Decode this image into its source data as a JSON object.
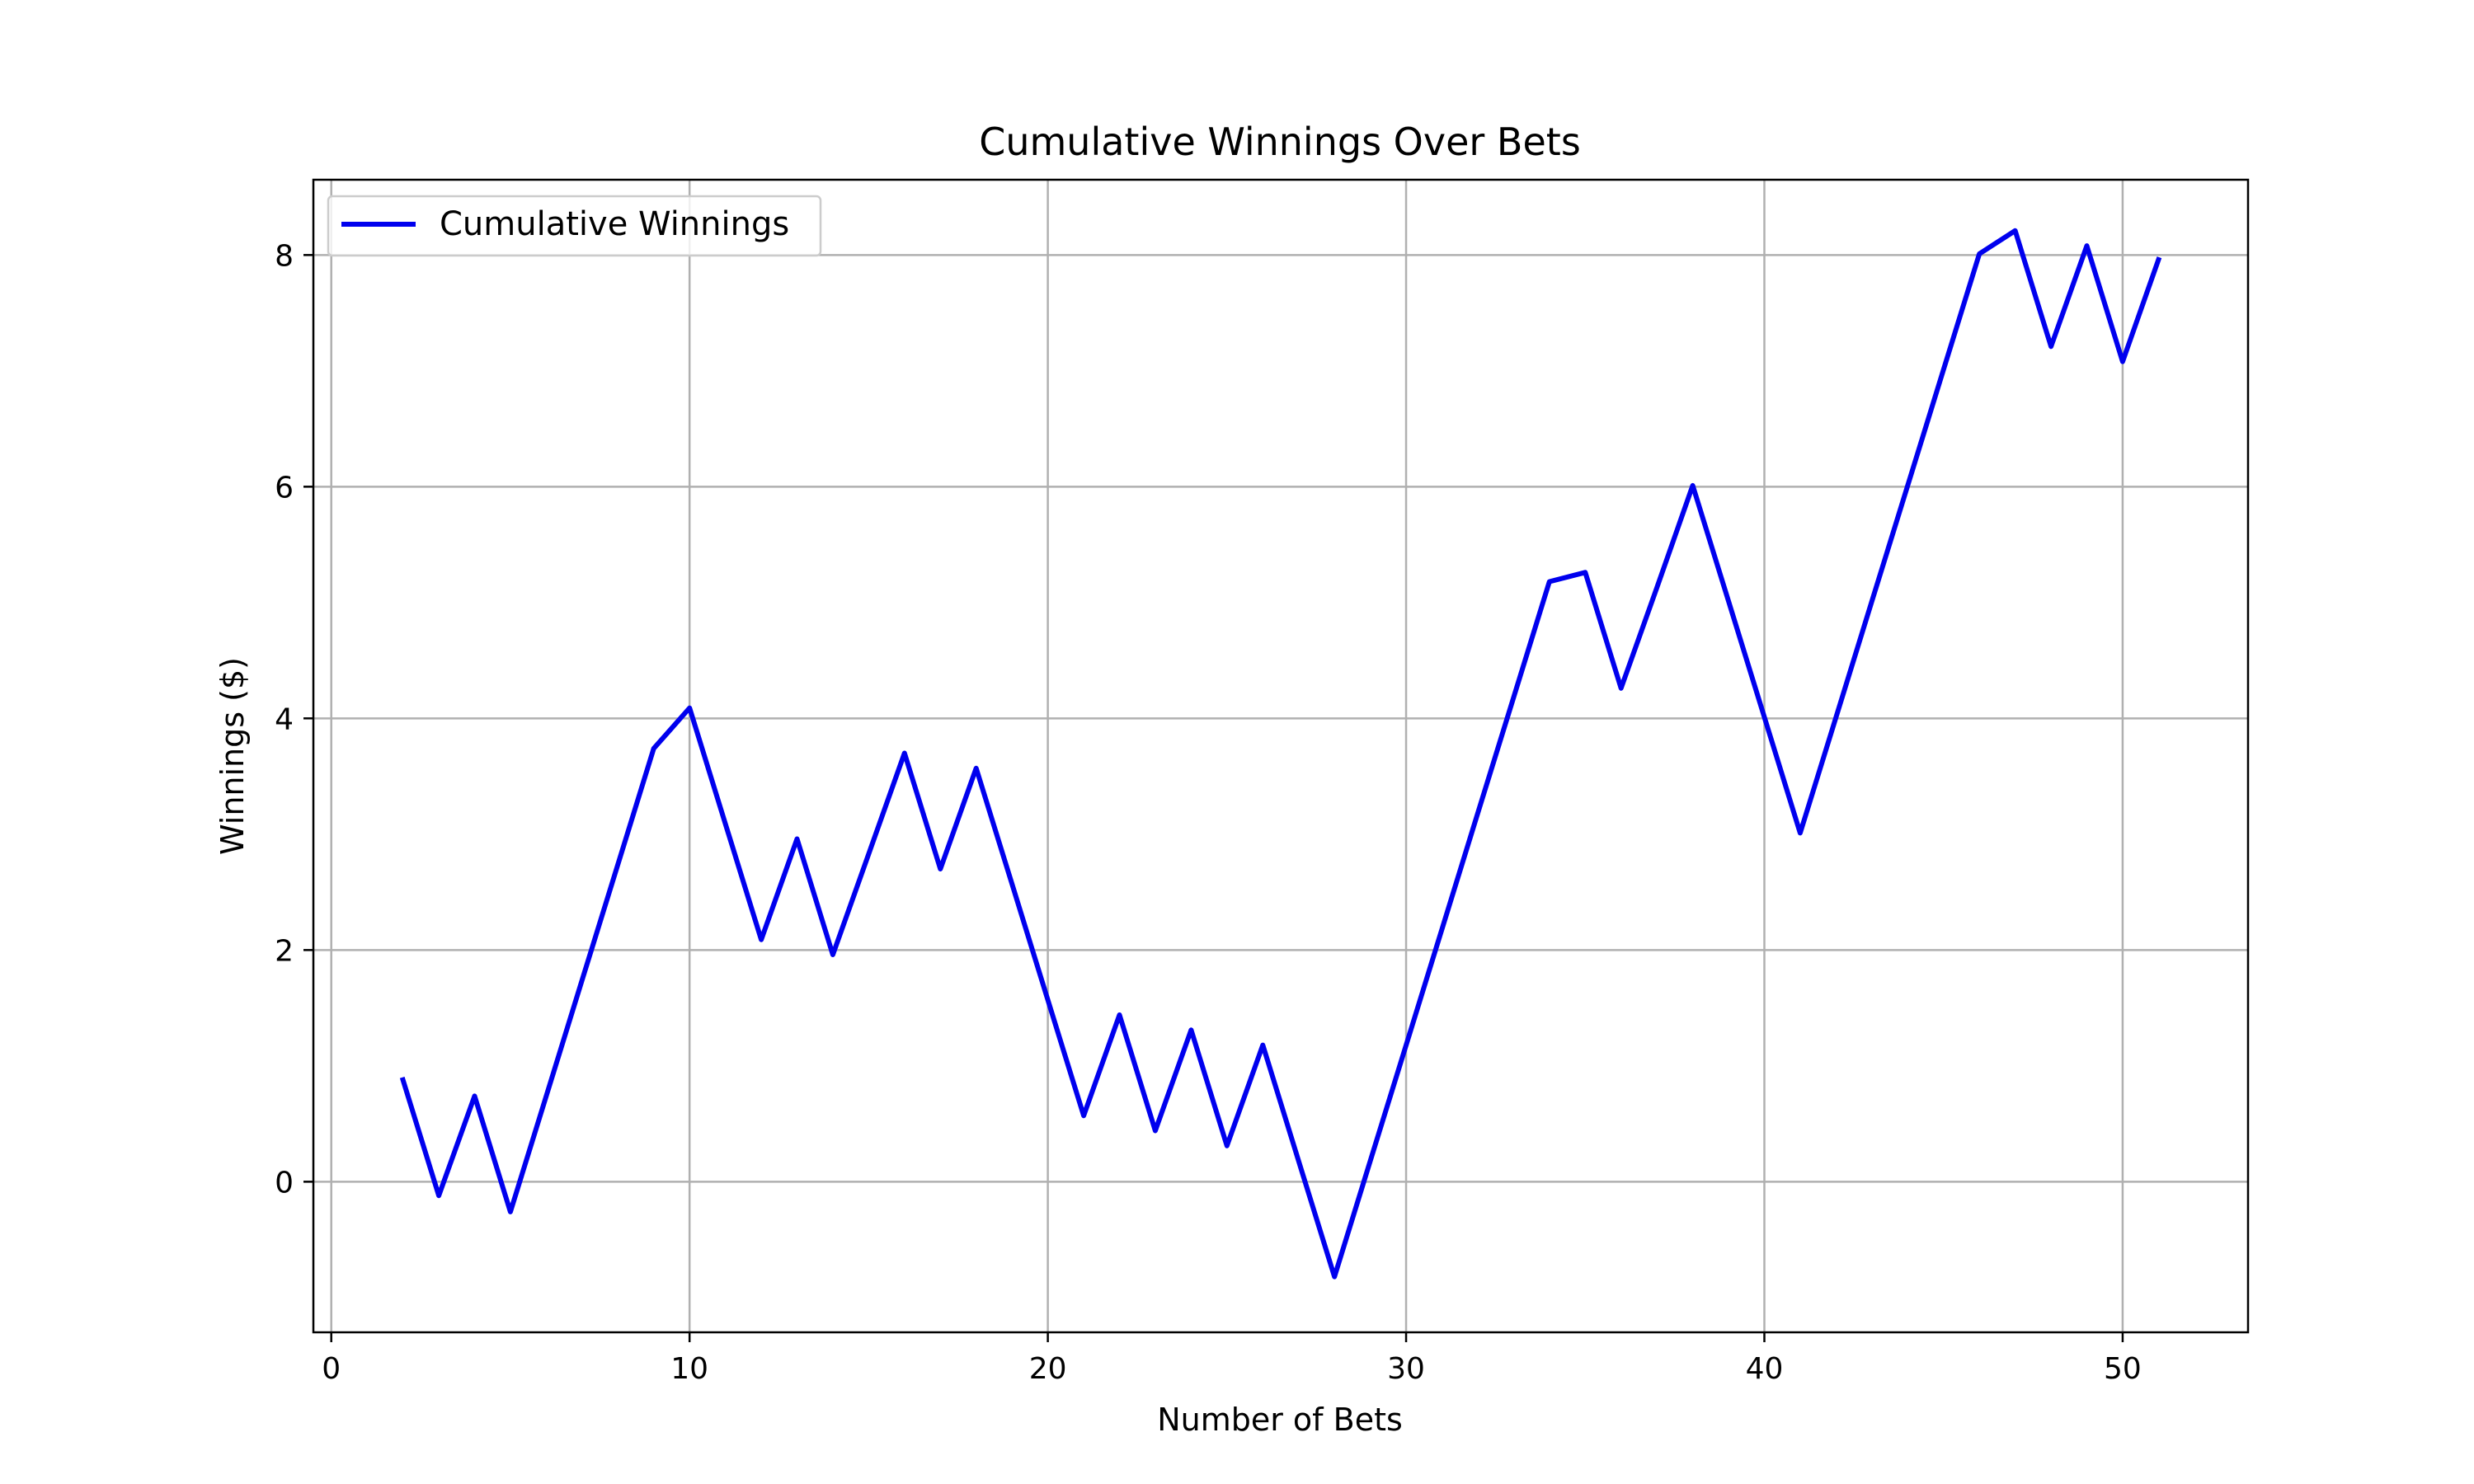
{
  "chart_data": {
    "type": "line",
    "title": "Cumulative Winnings Over Bets",
    "xlabel": "Number of Bets",
    "ylabel": "Winnings ($)",
    "xlim": [
      -0.5,
      53.5
    ],
    "ylim": [
      -1.3,
      8.65
    ],
    "xticks": [
      0,
      10,
      20,
      30,
      40,
      50
    ],
    "yticks": [
      0,
      2,
      4,
      6,
      8
    ],
    "grid": true,
    "legend_position": "top-left",
    "series": [
      {
        "name": "Cumulative Winnings",
        "color": "#0000ee",
        "x": [
          2,
          3,
          4,
          5,
          6,
          7,
          8,
          9,
          10,
          11,
          12,
          13,
          14,
          15,
          16,
          17,
          18,
          19,
          20,
          21,
          22,
          23,
          24,
          25,
          26,
          27,
          28,
          29,
          30,
          31,
          32,
          33,
          34,
          35,
          36,
          37,
          38,
          39,
          40,
          41,
          42,
          43,
          44,
          45,
          46,
          47,
          48,
          49,
          50,
          51
        ],
        "y": [
          0.88,
          -0.12,
          0.74,
          -0.26,
          0.74,
          1.74,
          2.74,
          3.74,
          4.09,
          3.09,
          2.09,
          2.96,
          1.96,
          2.83,
          3.7,
          2.7,
          3.57,
          2.57,
          1.57,
          0.57,
          1.44,
          0.44,
          1.31,
          0.31,
          1.18,
          0.18,
          -0.82,
          0.18,
          1.18,
          2.18,
          3.18,
          4.18,
          5.18,
          5.26,
          4.26,
          5.13,
          6.01,
          5.01,
          4.01,
          3.01,
          4.01,
          5.01,
          6.01,
          7.01,
          8.01,
          8.21,
          7.21,
          8.08,
          7.08,
          7.96
        ]
      }
    ]
  },
  "colors": {
    "line": "#0000ee",
    "grid": "#b0b0b0",
    "frame": "#000000"
  }
}
